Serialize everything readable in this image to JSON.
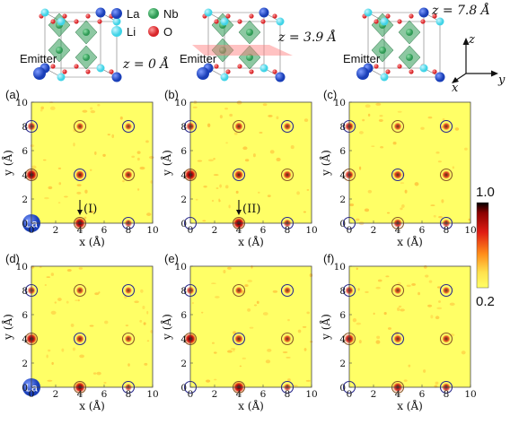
{
  "crystal": {
    "legend": [
      {
        "symbol": "La",
        "color": "#1a3fb8"
      },
      {
        "symbol": "Nb",
        "color": "#2f9a55"
      },
      {
        "symbol": "Li",
        "color": "#3fd3e6"
      },
      {
        "symbol": "O",
        "color": "#d8262a"
      }
    ],
    "emitter_label": "Emitter",
    "slices": [
      "z = 0 Å",
      "z = 3.9 Å",
      "z = 7.8 Å"
    ],
    "axes": {
      "z": "z",
      "x": "x",
      "y": "y"
    }
  },
  "colorbar": {
    "max_label": "1.0",
    "min_label": "0.2",
    "colors": [
      "#000000",
      "#8b0000",
      "#e01d14",
      "#ff8c1a",
      "#ffe14d",
      "#ffff66"
    ]
  },
  "panel_axes": {
    "xlabel": "x (Å)",
    "ylabel": "y (Å)",
    "ticks": [
      "0",
      "2",
      "4",
      "6",
      "8",
      "10"
    ]
  },
  "chart_data": [
    {
      "panel": "(a)",
      "type": "heatmap",
      "xlim": [
        0,
        10
      ],
      "ylim": [
        0,
        10
      ],
      "emitter_marker": "La",
      "annotation": "(I)",
      "peaks": [
        {
          "x": 0,
          "y": 4,
          "v": 0.9
        },
        {
          "x": 4,
          "y": 0,
          "v": 0.9
        },
        {
          "x": 0,
          "y": 8,
          "v": 0.45
        },
        {
          "x": 4,
          "y": 4,
          "v": 0.55
        },
        {
          "x": 4,
          "y": 8,
          "v": 0.35
        },
        {
          "x": 8,
          "y": 4,
          "v": 0.45
        },
        {
          "x": 8,
          "y": 0,
          "v": 0.35
        },
        {
          "x": 8,
          "y": 8,
          "v": 0.3
        }
      ]
    },
    {
      "panel": "(b)",
      "type": "heatmap",
      "xlim": [
        0,
        10
      ],
      "ylim": [
        0,
        10
      ],
      "annotation": "(II)",
      "peaks": [
        {
          "x": 0,
          "y": 4,
          "v": 0.95
        },
        {
          "x": 4,
          "y": 0,
          "v": 0.95
        },
        {
          "x": 0,
          "y": 8,
          "v": 0.5
        },
        {
          "x": 4,
          "y": 4,
          "v": 0.6
        },
        {
          "x": 4,
          "y": 8,
          "v": 0.45
        },
        {
          "x": 8,
          "y": 4,
          "v": 0.5
        },
        {
          "x": 8,
          "y": 0,
          "v": 0.4
        },
        {
          "x": 8,
          "y": 8,
          "v": 0.35
        }
      ]
    },
    {
      "panel": "(c)",
      "type": "heatmap",
      "xlim": [
        0,
        10
      ],
      "ylim": [
        0,
        10
      ],
      "peaks": [
        {
          "x": 0,
          "y": 4,
          "v": 0.55
        },
        {
          "x": 4,
          "y": 0,
          "v": 0.55
        },
        {
          "x": 0,
          "y": 8,
          "v": 0.55
        },
        {
          "x": 4,
          "y": 4,
          "v": 0.5
        },
        {
          "x": 4,
          "y": 8,
          "v": 0.4
        },
        {
          "x": 8,
          "y": 4,
          "v": 0.5
        },
        {
          "x": 8,
          "y": 0,
          "v": 0.4
        },
        {
          "x": 8,
          "y": 8,
          "v": 0.4
        }
      ]
    },
    {
      "panel": "(d)",
      "type": "heatmap",
      "xlim": [
        0,
        10
      ],
      "ylim": [
        0,
        10
      ],
      "emitter_marker": "La",
      "peaks": [
        {
          "x": 0,
          "y": 4,
          "v": 0.85
        },
        {
          "x": 4,
          "y": 0,
          "v": 0.85
        },
        {
          "x": 0,
          "y": 8,
          "v": 0.4
        },
        {
          "x": 4,
          "y": 4,
          "v": 0.45
        },
        {
          "x": 4,
          "y": 8,
          "v": 0.35
        },
        {
          "x": 8,
          "y": 4,
          "v": 0.35
        },
        {
          "x": 8,
          "y": 0,
          "v": 0.3
        },
        {
          "x": 8,
          "y": 8,
          "v": 0.3
        }
      ]
    },
    {
      "panel": "(e)",
      "type": "heatmap",
      "xlim": [
        0,
        10
      ],
      "ylim": [
        0,
        10
      ],
      "peaks": [
        {
          "x": 0,
          "y": 4,
          "v": 0.9
        },
        {
          "x": 4,
          "y": 0,
          "v": 0.9
        },
        {
          "x": 0,
          "y": 8,
          "v": 0.4
        },
        {
          "x": 4,
          "y": 4,
          "v": 0.5
        },
        {
          "x": 4,
          "y": 8,
          "v": 0.35
        },
        {
          "x": 8,
          "y": 4,
          "v": 0.4
        },
        {
          "x": 8,
          "y": 0,
          "v": 0.35
        },
        {
          "x": 8,
          "y": 8,
          "v": 0.3
        }
      ]
    },
    {
      "panel": "(f)",
      "type": "heatmap",
      "xlim": [
        0,
        10
      ],
      "ylim": [
        0,
        10
      ],
      "peaks": [
        {
          "x": 0,
          "y": 4,
          "v": 0.7
        },
        {
          "x": 4,
          "y": 0,
          "v": 0.7
        },
        {
          "x": 0,
          "y": 8,
          "v": 0.45
        },
        {
          "x": 4,
          "y": 4,
          "v": 0.45
        },
        {
          "x": 4,
          "y": 8,
          "v": 0.35
        },
        {
          "x": 8,
          "y": 4,
          "v": 0.45
        },
        {
          "x": 8,
          "y": 0,
          "v": 0.5
        },
        {
          "x": 8,
          "y": 8,
          "v": 0.35
        }
      ]
    }
  ]
}
